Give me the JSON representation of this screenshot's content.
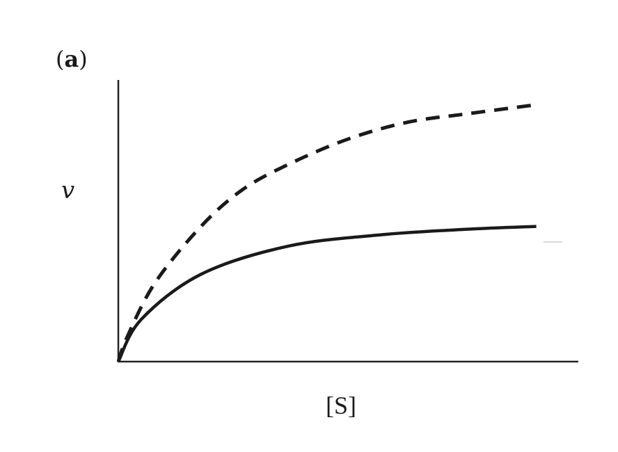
{
  "chart_data": {
    "type": "line",
    "panel_label": "(a)",
    "panel_label_parts": {
      "open": "(",
      "letter": "a",
      "close": ")"
    },
    "xlabel": "[S]",
    "ylabel": "v",
    "xlim": [
      0,
      1
    ],
    "ylim": [
      0,
      1
    ],
    "grid": false,
    "ticks": false,
    "legend": "none",
    "series": [
      {
        "style": "dashed",
        "color": "#1a1a1a",
        "x": [
          0,
          0.02,
          0.08,
          0.18,
          0.27,
          0.37,
          0.5,
          0.63,
          0.76,
          0.9
        ],
        "y": [
          0,
          0.09,
          0.28,
          0.48,
          0.61,
          0.7,
          0.79,
          0.85,
          0.88,
          0.91
        ]
      },
      {
        "style": "solid",
        "color": "#1a1a1a",
        "x": [
          0,
          0.05,
          0.18,
          0.37,
          0.57,
          0.76,
          0.91
        ],
        "y": [
          0,
          0.15,
          0.31,
          0.41,
          0.45,
          0.47,
          0.48
        ]
      }
    ]
  }
}
